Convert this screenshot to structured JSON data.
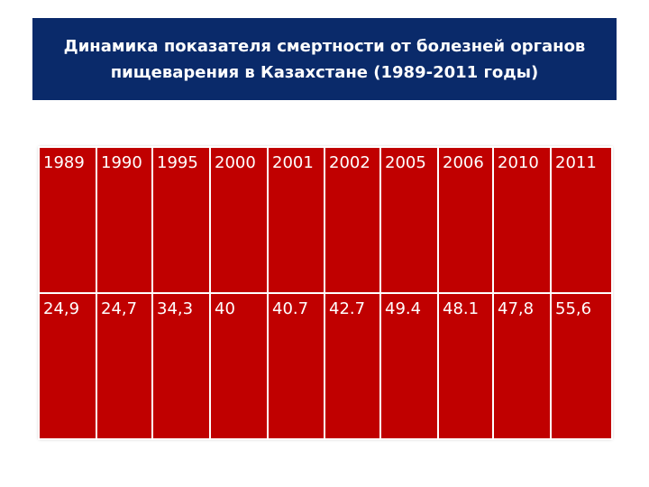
{
  "slide": {
    "title_line1": "Динамика показателя смертности от болезней органов",
    "title_line2": "пищеварения в Казахстане (1989-2011 годы)",
    "colors": {
      "banner": "#0a2a6a",
      "table_cells": "#c00000",
      "text": "#ffffff"
    }
  },
  "table": {
    "years": [
      "1989",
      "1990",
      "1995",
      "2000",
      "2001",
      "2002",
      "2005",
      "2006",
      "2010",
      "2011"
    ],
    "values": [
      "24,9",
      "24,7",
      "34,3",
      "40",
      "40.7",
      "42.7",
      "49.4",
      "48.1",
      "47,8",
      "55,6"
    ]
  }
}
